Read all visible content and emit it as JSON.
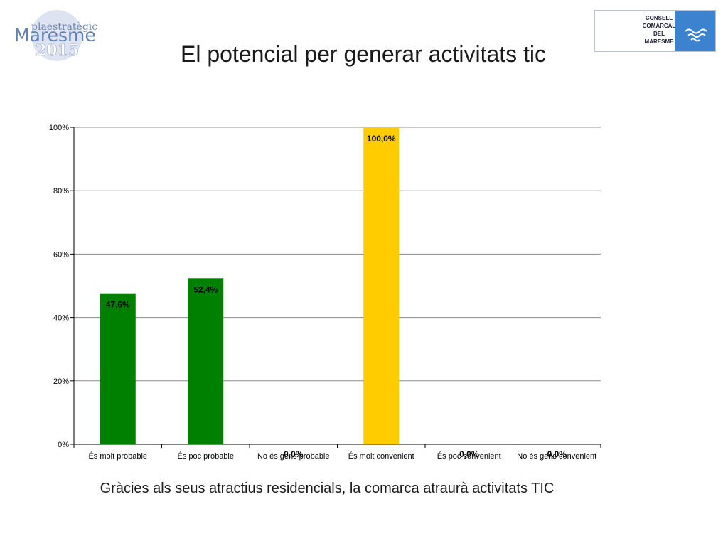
{
  "header": {
    "title": "El potencial per generar activitats tic",
    "logo_left": {
      "line1": "plaestratègic",
      "line2": "Maresme",
      "line3": "2015",
      "color": "#5f7fb6"
    },
    "logo_right": {
      "lines": [
        "CONSELL",
        "COMARCAL",
        "DEL",
        "MARESME"
      ],
      "color": "#3d82cf"
    }
  },
  "caption": "Gràcies als seus atractius residencials, la comarca atraurà activitats TIC",
  "chart_data": {
    "type": "bar",
    "categories": [
      "És molt probable",
      "És poc probable",
      "No és gens probable",
      "És molt convenient",
      "És poc convenient",
      "No és gens convenient"
    ],
    "values": [
      47.6,
      52.4,
      0.0,
      100.0,
      0.0,
      0.0
    ],
    "data_labels": [
      "47,6%",
      "52,4%",
      "0,0%",
      "100,0%",
      "0,0%",
      "0,0%"
    ],
    "bar_colors": [
      "#008000",
      "#008000",
      "#008000",
      "#ffcc00",
      "#ffcc00",
      "#ffcc00"
    ],
    "yticks": [
      "0%",
      "20%",
      "40%",
      "60%",
      "80%",
      "100%"
    ],
    "ylim": [
      0,
      100
    ],
    "grid": true,
    "legend": "none",
    "title": "",
    "xlabel": "",
    "ylabel": ""
  }
}
